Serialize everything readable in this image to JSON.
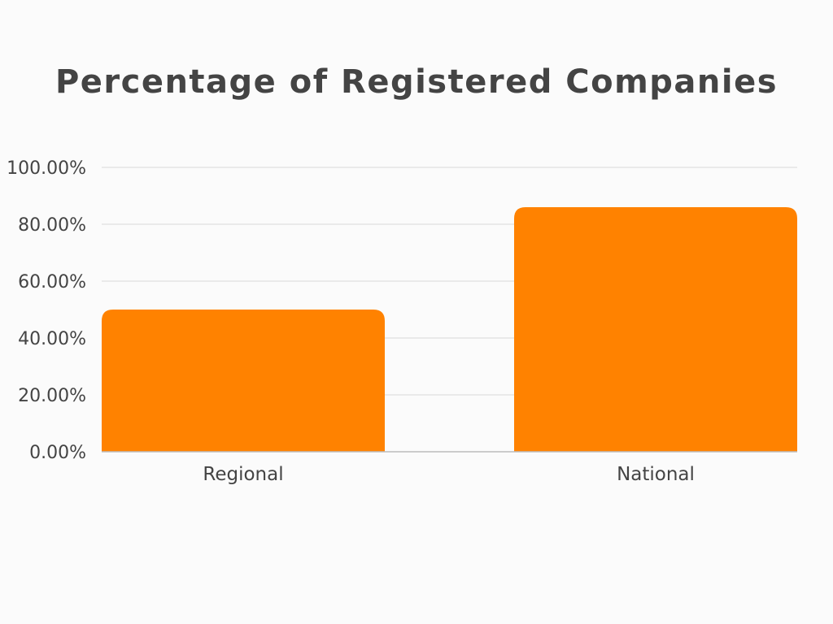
{
  "chart_data": {
    "type": "bar",
    "title": "Percentage of Registered Companies",
    "xlabel": "",
    "ylabel": "",
    "categories": [
      "Regional",
      "National"
    ],
    "values": [
      50,
      86
    ],
    "ylim": [
      0,
      100
    ],
    "yticks": [
      0,
      20,
      40,
      60,
      80,
      100
    ],
    "ytick_labels": [
      "0.00%",
      "20.00%",
      "40.00%",
      "60.00%",
      "80.00%",
      "100.00%"
    ],
    "bar_color": "#ff8200",
    "grid": true,
    "legend": "none"
  }
}
